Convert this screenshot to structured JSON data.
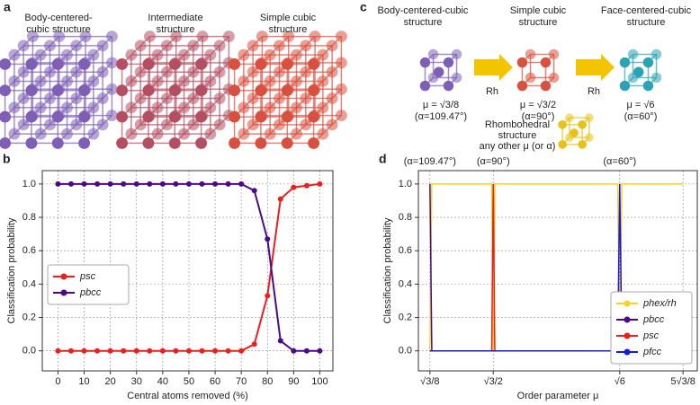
{
  "panels": {
    "a": {
      "letter": "a",
      "captions": [
        [
          "Body-centered-",
          "cubic structure"
        ],
        [
          "Intermediate",
          "structure"
        ],
        [
          "Simple cubic",
          "structure"
        ]
      ]
    },
    "c": {
      "letter": "c",
      "captions": [
        [
          "Body-centered-cubic",
          "structure"
        ],
        [
          "Simple cubic",
          "structure"
        ],
        [
          "Face-centered-cubic",
          "structure"
        ]
      ],
      "arrows": [
        "Rh",
        "Rh"
      ],
      "params": [
        [
          "μ = √3/8",
          "(α=109.47°)"
        ],
        [
          "μ = √3/2",
          "(α=90°)"
        ],
        [
          "μ = √6",
          "(α=60°)"
        ]
      ],
      "other": [
        "Rhombohedral",
        "structure",
        "any other μ (or α)"
      ]
    }
  },
  "chart_data": [
    {
      "type": "line",
      "panel_label": "b",
      "xlabel": "Central atoms removed (%)",
      "ylabel": "Classification probability",
      "x": [
        0,
        5,
        10,
        15,
        20,
        25,
        30,
        35,
        40,
        45,
        50,
        55,
        60,
        65,
        70,
        75,
        80,
        85,
        90,
        95,
        100
      ],
      "xlim": [
        -6,
        105
      ],
      "xticks": [
        0,
        10,
        20,
        30,
        40,
        50,
        60,
        70,
        80,
        90,
        100
      ],
      "ylim": [
        -0.12,
        1.08
      ],
      "yticks": [
        {
          "value": 0,
          "label": "0.0"
        },
        {
          "value": 0.2,
          "label": "0.2"
        },
        {
          "value": 0.4,
          "label": "0.4"
        },
        {
          "value": 0.6,
          "label": "0.6"
        },
        {
          "value": 0.8,
          "label": "0.8"
        },
        {
          "value": 1,
          "label": "1.0"
        }
      ],
      "grid": true,
      "markers": true,
      "legend": "left",
      "series": [
        {
          "name": "psc",
          "color": "#e8201e",
          "values": [
            0,
            0,
            0,
            0,
            0,
            0,
            0,
            0,
            0,
            0,
            0,
            0,
            0,
            0,
            0,
            0.04,
            0.33,
            0.91,
            0.98,
            0.99,
            1.0
          ]
        },
        {
          "name": "pbcc",
          "color": "#4b0a8a",
          "values": [
            1,
            1,
            1,
            1,
            1,
            1,
            1,
            1,
            1,
            1,
            1,
            1,
            1,
            1,
            1,
            0.96,
            0.67,
            0.06,
            0,
            0,
            0
          ]
        }
      ]
    },
    {
      "type": "line",
      "panel_label": "d",
      "xlabel": "Order parameter μ",
      "ylabel": "Classification probability",
      "x": [
        0.612,
        0.63,
        1.21,
        1.225,
        1.24,
        2.43,
        2.449,
        2.47,
        3.062
      ],
      "xlim": [
        0.5,
        3.2
      ],
      "xticks": [
        {
          "value": 0.612,
          "label": "√3/8"
        },
        {
          "value": 1.225,
          "label": "√3/2"
        },
        {
          "value": 2.449,
          "label": "√6"
        },
        {
          "value": 3.062,
          "label": "5√3/8"
        }
      ],
      "ylim": [
        -0.12,
        1.08
      ],
      "yticks": [
        {
          "value": 0,
          "label": "0.0"
        },
        {
          "value": 0.2,
          "label": "0.2"
        },
        {
          "value": 0.4,
          "label": "0.4"
        },
        {
          "value": 0.6,
          "label": "0.6"
        },
        {
          "value": 0.8,
          "label": "0.8"
        },
        {
          "value": 1,
          "label": "1.0"
        }
      ],
      "grid": true,
      "markers": false,
      "legend": "lower right",
      "annotations": [
        {
          "text": "(α=109.47°)",
          "x": 0.612
        },
        {
          "text": "(α=90°)",
          "x": 1.225
        },
        {
          "text": "(α=60°)",
          "x": 2.449
        }
      ],
      "series": [
        {
          "name": "phex/rh",
          "color": "#f5d327",
          "values": [
            0,
            1,
            1,
            0,
            1,
            1,
            0,
            1,
            1
          ]
        },
        {
          "name": "pbcc",
          "color": "#4b0a8a",
          "values": [
            1,
            0,
            0,
            0,
            0,
            0,
            0,
            0,
            0
          ]
        },
        {
          "name": "psc",
          "color": "#e8201e",
          "values": [
            0,
            0,
            0,
            1,
            0,
            0,
            0,
            0,
            0
          ]
        },
        {
          "name": "pfcc",
          "color": "#1a1adb",
          "values": [
            0,
            0,
            0,
            0,
            0,
            0,
            1,
            0,
            0
          ]
        }
      ]
    }
  ]
}
